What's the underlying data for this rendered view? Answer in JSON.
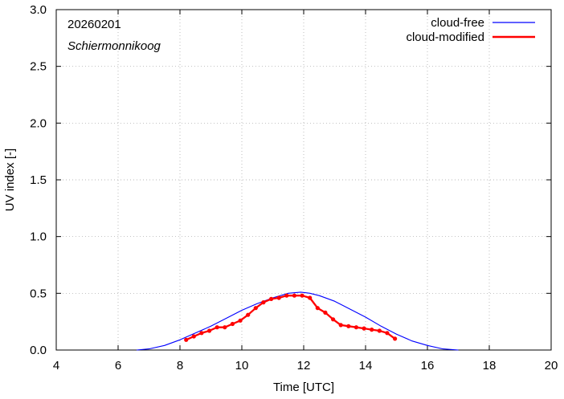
{
  "chart_data": {
    "type": "line",
    "xlabel": "Time  [UTC]",
    "ylabel": "UV index  [-]",
    "xlim": [
      4,
      20
    ],
    "ylim": [
      0.0,
      3.0
    ],
    "xticks": [
      4,
      6,
      8,
      10,
      12,
      14,
      16,
      18,
      20
    ],
    "yticks": [
      "0.0",
      "0.5",
      "1.0",
      "1.5",
      "2.0",
      "2.5",
      "3.0"
    ],
    "annotations": {
      "date": "20260201",
      "location": "Schiermonnikoog"
    },
    "legend_position": "top-right",
    "series": [
      {
        "name": "cloud-free",
        "color": "#0000ff",
        "markers": false,
        "x": [
          6.6,
          7.0,
          7.5,
          8.0,
          8.5,
          9.0,
          9.5,
          10.0,
          10.5,
          11.0,
          11.5,
          11.9,
          12.2,
          12.5,
          13.0,
          13.5,
          14.0,
          14.5,
          15.0,
          15.5,
          16.0,
          16.5,
          17.0
        ],
        "y": [
          0.0,
          0.01,
          0.04,
          0.09,
          0.15,
          0.21,
          0.28,
          0.35,
          0.41,
          0.46,
          0.5,
          0.51,
          0.5,
          0.48,
          0.43,
          0.36,
          0.29,
          0.21,
          0.14,
          0.08,
          0.04,
          0.01,
          0.0
        ]
      },
      {
        "name": "cloud-modified",
        "color": "#ff0000",
        "markers": true,
        "x": [
          8.2,
          8.45,
          8.7,
          8.95,
          9.2,
          9.45,
          9.7,
          9.95,
          10.2,
          10.45,
          10.7,
          10.95,
          11.2,
          11.45,
          11.7,
          11.95,
          12.2,
          12.45,
          12.7,
          12.95,
          13.2,
          13.45,
          13.7,
          13.95,
          14.2,
          14.45,
          14.7,
          14.95
        ],
        "y": [
          0.09,
          0.12,
          0.15,
          0.17,
          0.2,
          0.2,
          0.23,
          0.26,
          0.31,
          0.37,
          0.42,
          0.45,
          0.46,
          0.48,
          0.48,
          0.48,
          0.46,
          0.37,
          0.33,
          0.27,
          0.22,
          0.21,
          0.2,
          0.19,
          0.18,
          0.17,
          0.15,
          0.1
        ]
      }
    ]
  }
}
